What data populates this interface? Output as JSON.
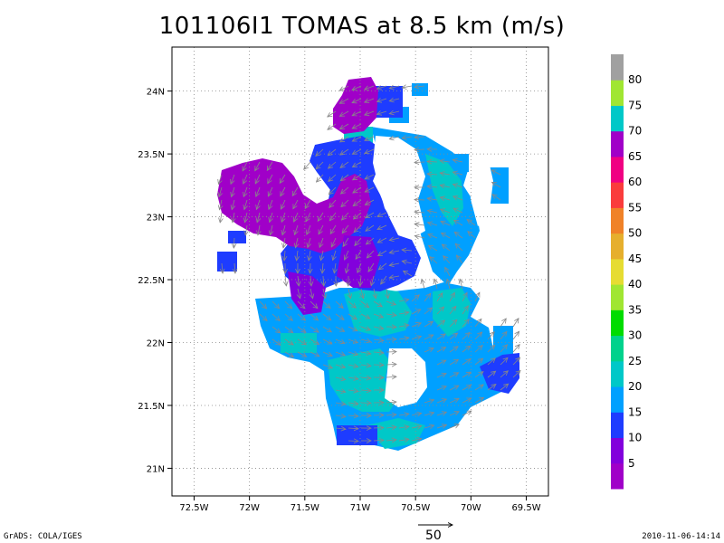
{
  "title": "101106I1 TOMAS at 8.5 km (m/s)",
  "map": {
    "lon_ticks": [
      {
        "value": -72.5,
        "label": "72.5W"
      },
      {
        "value": -72.0,
        "label": "72W"
      },
      {
        "value": -71.5,
        "label": "71.5W"
      },
      {
        "value": -71.0,
        "label": "71W"
      },
      {
        "value": -70.5,
        "label": "70.5W"
      },
      {
        "value": -70.0,
        "label": "70W"
      },
      {
        "value": -69.5,
        "label": "69.5W"
      }
    ],
    "lat_ticks": [
      {
        "value": 24.0,
        "label": "24N"
      },
      {
        "value": 23.5,
        "label": "23.5N"
      },
      {
        "value": 23.0,
        "label": "23N"
      },
      {
        "value": 22.5,
        "label": "22.5N"
      },
      {
        "value": 22.0,
        "label": "22N"
      },
      {
        "value": 21.5,
        "label": "21.5N"
      },
      {
        "value": 21.0,
        "label": "21N"
      }
    ],
    "lon_range": [
      -72.7,
      -69.3
    ],
    "lat_range": [
      20.78,
      24.35
    ],
    "grid": "dotted"
  },
  "colorbar": {
    "labels": [
      "5",
      "10",
      "15",
      "20",
      "25",
      "30",
      "35",
      "40",
      "45",
      "50",
      "55",
      "60",
      "65",
      "70",
      "75",
      "80"
    ],
    "colors": [
      "#a000c8",
      "#8200dc",
      "#1e3cff",
      "#00a0ff",
      "#00c8c8",
      "#00d28c",
      "#00dc00",
      "#a0e632",
      "#e6dc32",
      "#e6af2d",
      "#f08228",
      "#fa3c3c",
      "#f00082",
      "#a000c8",
      "#00c8c8",
      "#a0e632",
      "#a0a0a0"
    ]
  },
  "reference_vector": {
    "label": "50"
  },
  "footer": {
    "left": "GrADS: COLA/IGES",
    "right": "2010-11-06-14:14"
  }
}
